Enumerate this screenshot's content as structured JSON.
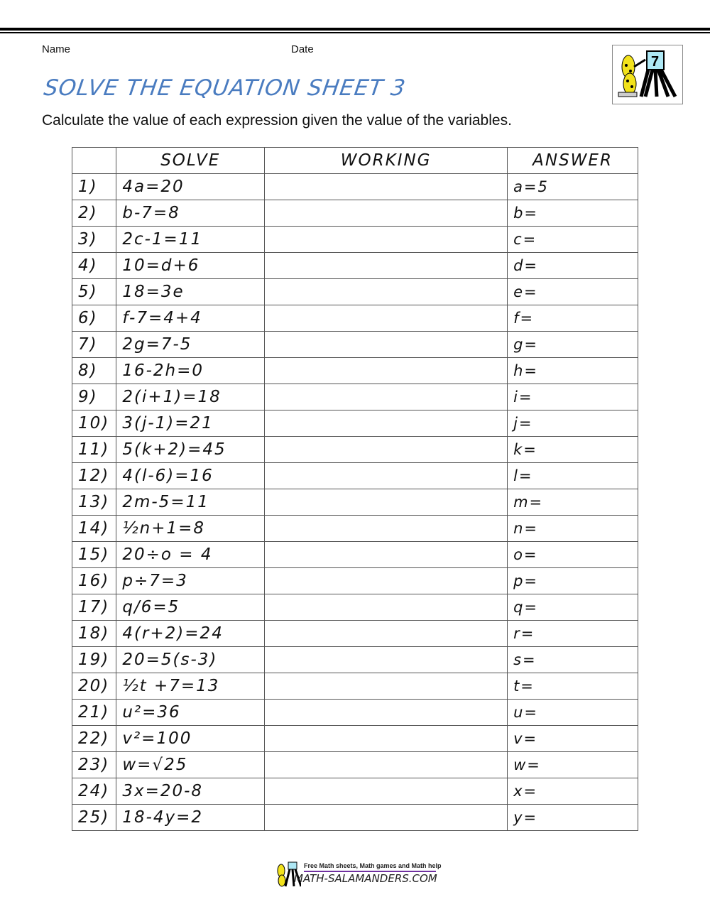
{
  "header": {
    "name_label": "Name",
    "date_label": "Date",
    "title": "SOLVE THE EQUATION SHEET 3",
    "instructions": "Calculate the value of each expression given the value of the variables.",
    "logo_grade": "7"
  },
  "table": {
    "headers": [
      "",
      "SOLVE",
      "WORKING",
      "ANSWER"
    ],
    "rows": [
      {
        "num": "1)",
        "solve": "4a=20",
        "answer": "a=5"
      },
      {
        "num": "2)",
        "solve": "b-7=8",
        "answer": "b="
      },
      {
        "num": "3)",
        "solve": "2c-1=11",
        "answer": "c="
      },
      {
        "num": "4)",
        "solve": "10=d+6",
        "answer": "d="
      },
      {
        "num": "5)",
        "solve": "18=3e",
        "answer": "e="
      },
      {
        "num": "6)",
        "solve": "f-7=4+4",
        "answer": "f="
      },
      {
        "num": "7)",
        "solve": "2g=7-5",
        "answer": "g="
      },
      {
        "num": "8)",
        "solve": "16-2h=0",
        "answer": "h="
      },
      {
        "num": "9)",
        "solve": "2(i+1)=18",
        "answer": "i="
      },
      {
        "num": "10)",
        "solve": "3(j-1)=21",
        "answer": "j="
      },
      {
        "num": "11)",
        "solve": "5(k+2)=45",
        "answer": "k="
      },
      {
        "num": "12)",
        "solve": "4(l-6)=16",
        "answer": "l="
      },
      {
        "num": "13)",
        "solve": "2m-5=11",
        "answer": "m="
      },
      {
        "num": "14)",
        "solve": "½n+1=8",
        "answer": "n="
      },
      {
        "num": "15)",
        "solve": "20÷o = 4",
        "answer": "o="
      },
      {
        "num": "16)",
        "solve": "p÷7=3",
        "answer": "p="
      },
      {
        "num": "17)",
        "solve": "q/6=5",
        "answer": "q="
      },
      {
        "num": "18)",
        "solve": "4(r+2)=24",
        "answer": "r="
      },
      {
        "num": "19)",
        "solve": "20=5(s-3)",
        "answer": "s="
      },
      {
        "num": "20)",
        "solve": "½t +7=13",
        "answer": "t="
      },
      {
        "num": "21)",
        "solve": "u²=36",
        "answer": "u="
      },
      {
        "num": "22)",
        "solve": "v²=100",
        "answer": "v="
      },
      {
        "num": "23)",
        "solve": "w=√25",
        "answer": "w="
      },
      {
        "num": "24)",
        "solve": "3x=20-8",
        "answer": "x="
      },
      {
        "num": "25)",
        "solve": "18-4y=2",
        "answer": "y="
      }
    ]
  },
  "footer": {
    "tagline": "Free Math sheets, Math games and Math help",
    "site": "MATH-SALAMANDERS.COM"
  },
  "colors": {
    "title": "#4a7cc0",
    "footer_line": "#7030a0",
    "logo_board": "#aee8f5",
    "salamander": "#f2e21c"
  }
}
